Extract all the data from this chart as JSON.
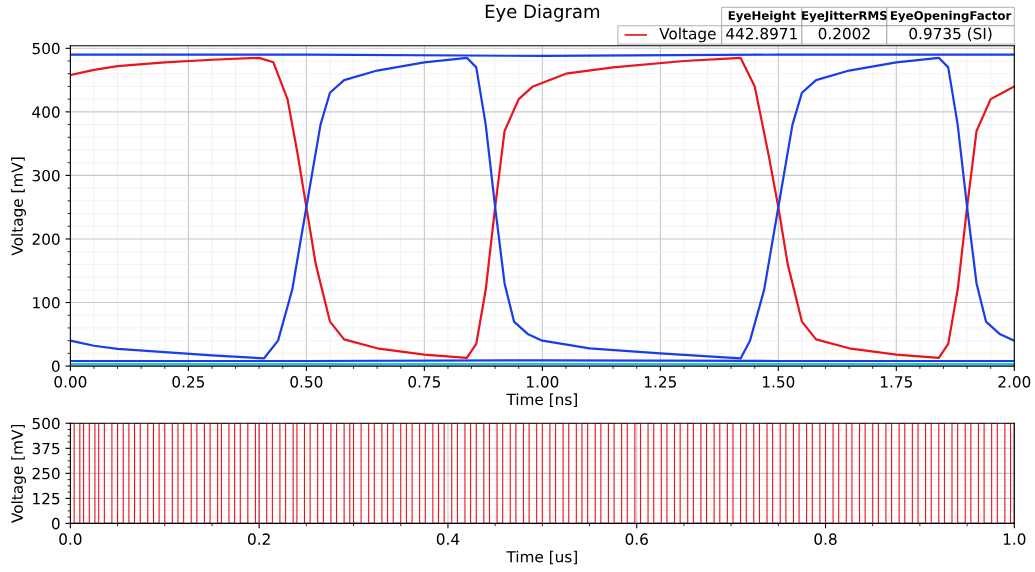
{
  "chart_data": [
    {
      "type": "line",
      "title": "Eye Diagram",
      "xlabel": "Time [ns]",
      "ylabel": "Voltage [mV]",
      "xlim": [
        0,
        2
      ],
      "xticks": [
        {
          "value": 0,
          "label": "0.00"
        },
        {
          "value": 0.25,
          "label": "0.25"
        },
        {
          "value": 0.5,
          "label": "0.50"
        },
        {
          "value": 0.75,
          "label": "0.75"
        },
        {
          "value": 1,
          "label": "1.00"
        },
        {
          "value": 1.25,
          "label": "1.25"
        },
        {
          "value": 1.5,
          "label": "1.50"
        },
        {
          "value": 1.75,
          "label": "1.75"
        },
        {
          "value": 2,
          "label": "2.00"
        }
      ],
      "ylim": [
        0,
        504
      ],
      "yticks": [
        0,
        100,
        200,
        300,
        400,
        500
      ],
      "grid": true,
      "legend": "top right",
      "annotations": [
        "EyeHeight",
        "EyeJitterRMS",
        "EyeOpeningFactor",
        "442.8971",
        "0.2002",
        "0.9735 (SI)"
      ],
      "series": [
        {
          "color": "#1a3de8",
          "x": [
            0,
            0.5,
            1.0,
            1.5,
            2.0
          ],
          "values": [
            490,
            490,
            488,
            490,
            490
          ]
        },
        {
          "color": "#1a3de8",
          "x": [
            0,
            0.5,
            1.0,
            1.5,
            2.0
          ],
          "values": [
            8,
            8,
            9,
            8,
            8
          ]
        },
        {
          "color": "#13c8e8",
          "x": [
            0,
            1.0,
            2.0
          ],
          "values": [
            3,
            3,
            3
          ]
        },
        {
          "name": "Voltage",
          "color": "#e8141e",
          "x": [
            0,
            0.05,
            0.1,
            0.2,
            0.3,
            0.4,
            0.43,
            0.46,
            0.48,
            0.5,
            0.52,
            0.55,
            0.58,
            0.65,
            0.75,
            0.84,
            0.86,
            0.88,
            0.9,
            0.92,
            0.95,
            0.98,
            1.05,
            1.15,
            1.3,
            1.42,
            1.45,
            1.48,
            1.5,
            1.52,
            1.55,
            1.58,
            1.65,
            1.75,
            1.84,
            1.86,
            1.88,
            1.9,
            1.92,
            1.95,
            1.98,
            2.0
          ],
          "values": [
            458,
            466,
            472,
            478,
            482,
            485,
            478,
            420,
            340,
            250,
            160,
            70,
            42,
            28,
            18,
            13,
            35,
            120,
            250,
            370,
            420,
            440,
            460,
            470,
            480,
            485,
            440,
            330,
            250,
            160,
            70,
            42,
            28,
            18,
            13,
            35,
            120,
            250,
            370,
            420,
            432,
            440
          ]
        },
        {
          "color": "#1a3de8",
          "x": [
            0,
            0.05,
            0.1,
            0.2,
            0.3,
            0.41,
            0.44,
            0.47,
            0.5,
            0.53,
            0.55,
            0.58,
            0.65,
            0.75,
            0.84,
            0.86,
            0.88,
            0.9,
            0.92,
            0.94,
            0.97,
            1.0,
            1.1,
            1.25,
            1.42,
            1.44,
            1.47,
            1.5,
            1.53,
            1.55,
            1.58,
            1.65,
            1.75,
            1.84,
            1.86,
            1.88,
            1.9,
            1.92,
            1.94,
            1.97,
            2.0
          ],
          "values": [
            40,
            32,
            27,
            22,
            17,
            12,
            40,
            120,
            250,
            380,
            430,
            450,
            465,
            478,
            485,
            470,
            380,
            250,
            130,
            70,
            50,
            40,
            28,
            20,
            12,
            40,
            120,
            250,
            380,
            430,
            450,
            465,
            478,
            485,
            470,
            380,
            250,
            130,
            70,
            50,
            40
          ]
        }
      ]
    },
    {
      "type": "step",
      "xlabel": "Time [us]",
      "ylabel": "Voltage [mV]",
      "xlim": [
        0,
        1
      ],
      "xticks": [
        {
          "value": 0,
          "label": "0.0"
        },
        {
          "value": 0.2,
          "label": "0.2"
        },
        {
          "value": 0.4,
          "label": "0.4"
        },
        {
          "value": 0.6,
          "label": "0.6"
        },
        {
          "value": 0.8,
          "label": "0.8"
        },
        {
          "value": 1.0,
          "label": "1.0"
        }
      ],
      "ylim": [
        0,
        500
      ],
      "yticks": [
        0,
        125,
        250,
        375,
        500
      ],
      "grid": true,
      "series": [
        {
          "color": "#e8141e",
          "x": [
            0,
            0.004,
            0.01,
            0.014,
            0.02,
            0.026,
            0.03,
            0.036,
            0.044,
            0.05,
            0.056,
            0.062,
            0.068,
            0.074,
            0.082,
            0.088,
            0.094,
            0.1,
            0.108,
            0.114,
            0.12,
            0.128,
            0.134,
            0.142,
            0.148,
            0.156,
            0.16,
            0.168,
            0.174,
            0.18,
            0.188,
            0.196,
            0.2,
            0.208,
            0.214,
            0.222,
            0.228,
            0.236,
            0.24,
            0.248,
            0.254,
            0.262,
            0.268,
            0.276,
            0.282,
            0.29,
            0.296,
            0.3,
            0.308,
            0.316,
            0.322,
            0.33,
            0.336,
            0.342,
            0.35,
            0.356,
            0.362,
            0.37,
            0.376,
            0.384,
            0.39,
            0.396,
            0.404,
            0.41,
            0.418,
            0.424,
            0.43,
            0.438,
            0.444,
            0.452,
            0.458,
            0.466,
            0.472,
            0.48,
            0.486,
            0.494,
            0.5,
            0.508,
            0.514,
            0.522,
            0.528,
            0.536,
            0.542,
            0.548,
            0.556,
            0.562,
            0.57,
            0.576,
            0.584,
            0.59,
            0.598,
            0.604,
            0.612,
            0.618,
            0.626,
            0.632,
            0.64,
            0.646,
            0.654,
            0.66,
            0.668,
            0.674,
            0.682,
            0.688,
            0.696,
            0.702,
            0.71,
            0.716,
            0.724,
            0.73,
            0.738,
            0.744,
            0.752,
            0.758,
            0.766,
            0.772,
            0.78,
            0.786,
            0.794,
            0.8,
            0.808,
            0.814,
            0.822,
            0.828,
            0.836,
            0.842,
            0.85,
            0.856,
            0.864,
            0.87,
            0.878,
            0.884,
            0.892,
            0.898,
            0.906,
            0.912,
            0.92,
            0.926,
            0.934,
            0.94,
            0.948,
            0.954,
            0.962,
            0.968,
            0.976,
            0.982,
            0.99,
            0.996,
            1.0
          ],
          "values": [
            500,
            0,
            500,
            0,
            500,
            0,
            500,
            0,
            500,
            0,
            500,
            0,
            500,
            0,
            500,
            0,
            500,
            0,
            500,
            0,
            500,
            0,
            500,
            0,
            500,
            0,
            500,
            0,
            500,
            0,
            500,
            0,
            500,
            0,
            500,
            0,
            500,
            0,
            500,
            0,
            500,
            0,
            500,
            0,
            500,
            0,
            500,
            0,
            500,
            0,
            500,
            0,
            500,
            0,
            500,
            0,
            500,
            0,
            500,
            0,
            500,
            0,
            500,
            0,
            500,
            0,
            500,
            0,
            500,
            0,
            500,
            0,
            500,
            0,
            500,
            0,
            500,
            0,
            500,
            0,
            500,
            0,
            500,
            0,
            500,
            0,
            500,
            0,
            500,
            0,
            500,
            0,
            500,
            0,
            500,
            0,
            500,
            0,
            500,
            0,
            500,
            0,
            500,
            0,
            500,
            0,
            500,
            0,
            500,
            0,
            500,
            0,
            500,
            0,
            500,
            0,
            500,
            0,
            500,
            0,
            500,
            0,
            500,
            0,
            500,
            0,
            500,
            0,
            500,
            0,
            500,
            0,
            500,
            0,
            500,
            0,
            500,
            0,
            500,
            0,
            500,
            0,
            500,
            0,
            500,
            0,
            500,
            0,
            500
          ]
        }
      ]
    }
  ]
}
